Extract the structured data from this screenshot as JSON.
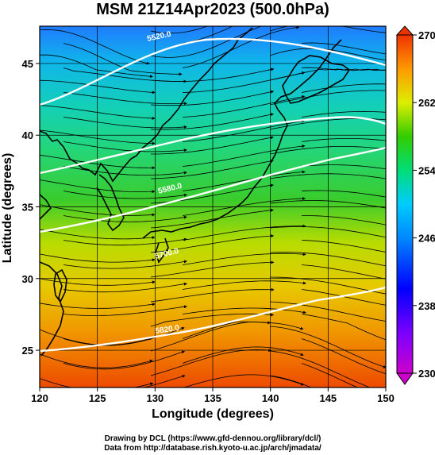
{
  "title": "MSM 21Z14Apr2023 (500.0hPa)",
  "xlabel": "Longitude (degrees)",
  "ylabel": "Latitude  (degrees)",
  "credits": {
    "line1": "Drawing by DCL (https://www.gfd-dennou.org/library/dcl/)",
    "line2": "Data from http://database.rish.kyoto-u.ac.jp/arch/jmadata/"
  },
  "map": {
    "lon_range": [
      120,
      150
    ],
    "lat_range": [
      22.4,
      47.6
    ],
    "x_ticks": [
      "120",
      "125",
      "130",
      "135",
      "140",
      "145",
      "150"
    ],
    "x_tick_values": [
      120,
      125,
      130,
      135,
      140,
      145,
      150
    ],
    "y_ticks": [
      "25",
      "30",
      "35",
      "40",
      "45"
    ],
    "y_tick_values": [
      25,
      30,
      35,
      40,
      45
    ],
    "grid": true,
    "shaded_field": "temperature",
    "streamlines": "wind",
    "contour_labels": [
      "5520.0",
      "5580.0",
      "5700.0",
      "5820.0"
    ]
  },
  "colorbar": {
    "min": 230,
    "max": 270,
    "ticks": [
      "270",
      "262",
      "254",
      "246",
      "238",
      "230"
    ],
    "tick_values": [
      270,
      262,
      254,
      246,
      238,
      230
    ],
    "extend": "both",
    "colors": [
      "#cc00cc",
      "#0000ff",
      "#00ccff",
      "#00dd77",
      "#33cc00",
      "#ddee00",
      "#ff9900",
      "#ee3300"
    ]
  }
}
